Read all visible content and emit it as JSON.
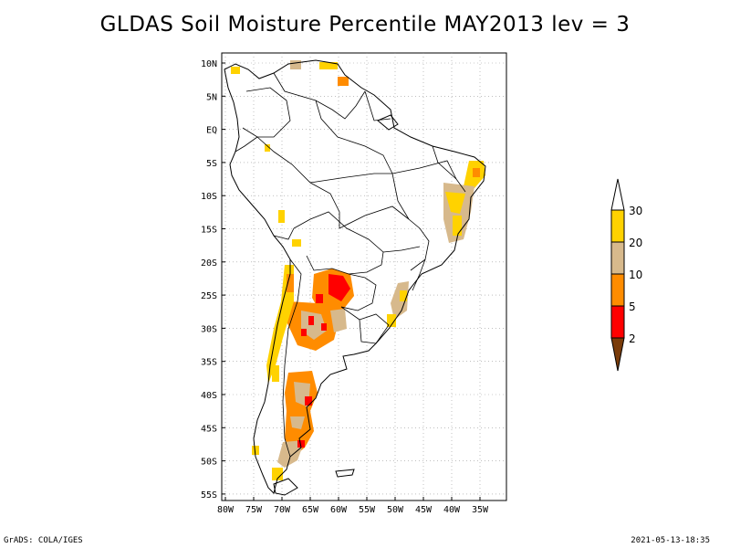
{
  "title": "GLDAS Soil Moisture Percentile MAY2013 lev = 3",
  "footer": {
    "left": "GrADS: COLA/IGES",
    "right": "2021-05-13-18:35"
  },
  "map": {
    "lon_ticks": [
      "80W",
      "75W",
      "70W",
      "65W",
      "60W",
      "55W",
      "50W",
      "45W",
      "40W",
      "35W"
    ],
    "lat_ticks": [
      "10N",
      "5N",
      "EQ",
      "5S",
      "10S",
      "15S",
      "20S",
      "25S",
      "30S",
      "35S",
      "40S",
      "45S",
      "50S",
      "55S"
    ],
    "grid": true
  },
  "legend": {
    "labels": [
      "2",
      "5",
      "10",
      "20",
      "30"
    ],
    "colors": {
      "above_30": "#ffffff",
      "20-30": "#ffd200",
      "10-20": "#d7b98c",
      "5-10": "#ff8c00",
      "2-5": "#ff0000",
      "below_2": "#7a3c0a"
    }
  }
}
